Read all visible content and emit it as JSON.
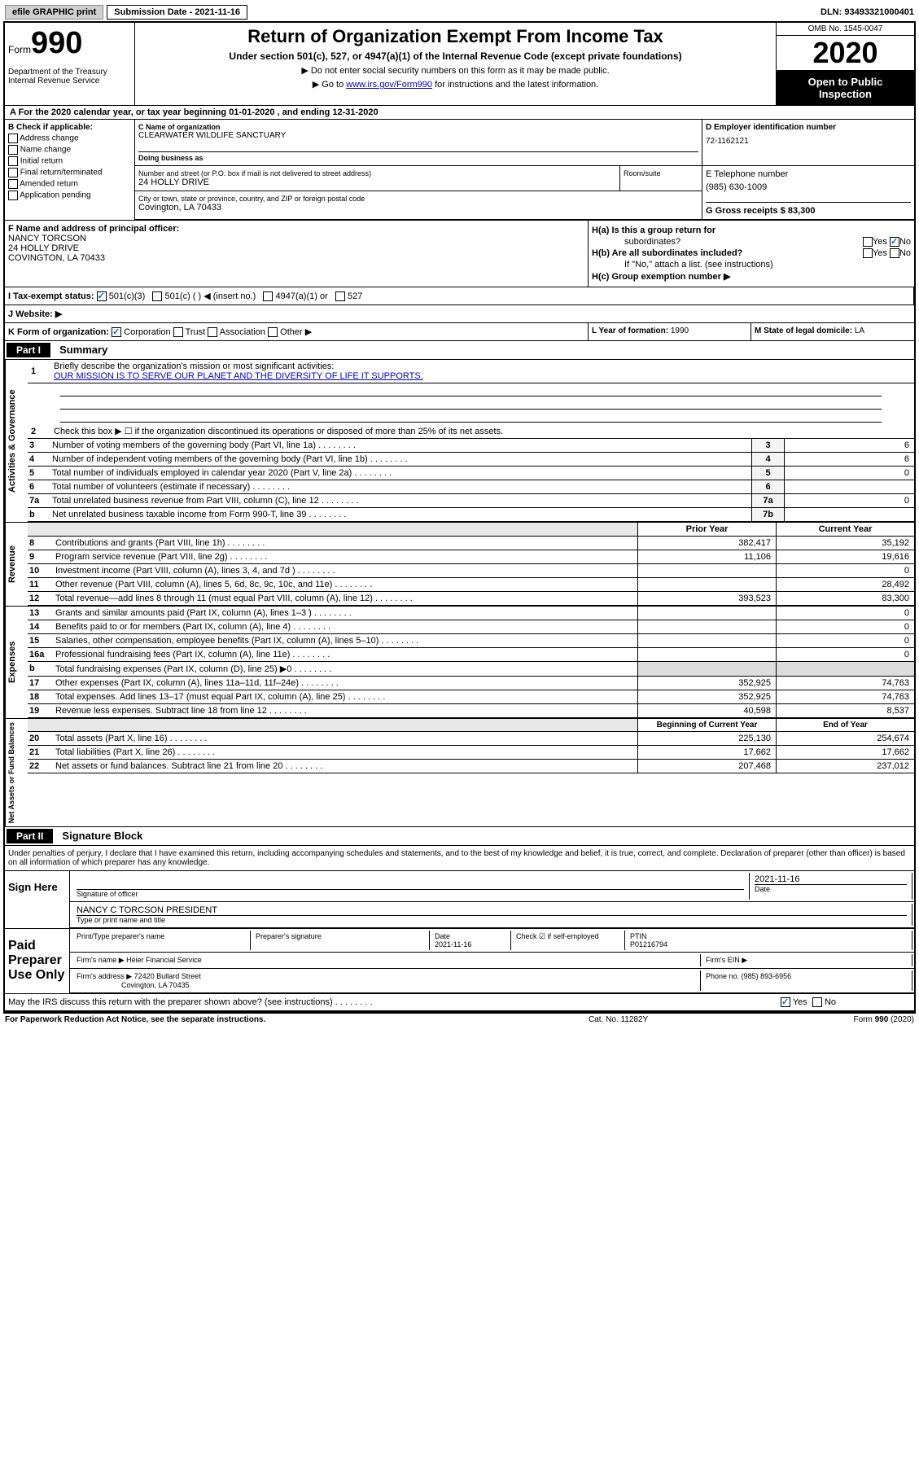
{
  "topbar": {
    "efile": "efile GRAPHIC print",
    "sub_date_label": "Submission Date - 2021-11-16",
    "dln": "DLN: 93493321000401"
  },
  "header": {
    "form_label": "Form",
    "form_num": "990",
    "dept": "Department of the Treasury\nInternal Revenue Service",
    "title": "Return of Organization Exempt From Income Tax",
    "subtitle": "Under section 501(c), 527, or 4947(a)(1) of the Internal Revenue Code (except private foundations)",
    "line1": "▶ Do not enter social security numbers on this form as it may be made public.",
    "line2_pre": "▶ Go to ",
    "line2_link": "www.irs.gov/Form990",
    "line2_post": " for instructions and the latest information.",
    "omb": "OMB No. 1545-0047",
    "year": "2020",
    "open": "Open to Public Inspection"
  },
  "row_a": "A For the 2020 calendar year, or tax year beginning 01-01-2020    , and ending 12-31-2020",
  "col_b": {
    "title": "B Check if applicable:",
    "items": [
      "Address change",
      "Name change",
      "Initial return",
      "Final return/terminated",
      "Amended return",
      "Application pending"
    ]
  },
  "entity": {
    "name_label": "C Name of organization",
    "name": "CLEARWATER WILDLIFE SANCTUARY",
    "dba": "Doing business as",
    "street_label": "Number and street (or P.O. box if mail is not delivered to street address)",
    "street": "24 HOLLY DRIVE",
    "room_label": "Room/suite",
    "city_label": "City or town, state or province, country, and ZIP or foreign postal code",
    "city": "Covington, LA  70433",
    "ein_label": "D Employer identification number",
    "ein": "72-1162121",
    "phone_label": "E Telephone number",
    "phone": "(985) 630-1009",
    "gross_label": "G Gross receipts $ 83,300"
  },
  "officer": {
    "label": "F  Name and address of principal officer:",
    "name": "NANCY TORCSON",
    "addr1": "24 HOLLY DRIVE",
    "addr2": "COVINGTON, LA  70433"
  },
  "h": {
    "a_label": "H(a)  Is this a group return for",
    "a_sub": "subordinates?",
    "b_label": "H(b)  Are all subordinates included?",
    "b_note": "If \"No,\" attach a list. (see instructions)",
    "c_label": "H(c)  Group exemption number ▶"
  },
  "status": {
    "label": "I    Tax-exempt status:",
    "opts": [
      "501(c)(3)",
      "501(c) (  ) ◀ (insert no.)",
      "4947(a)(1) or",
      "527"
    ]
  },
  "website_label": "J   Website: ▶",
  "klm": {
    "k": "K Form of organization:",
    "k_opts": [
      "Corporation",
      "Trust",
      "Association",
      "Other ▶"
    ],
    "l_label": "L Year of formation:",
    "l_val": "1990",
    "m_label": "M State of legal domicile:",
    "m_val": "LA"
  },
  "part1": {
    "label": "Part I",
    "title": "Summary",
    "side_gov": "Activities & Governance",
    "line1": "Briefly describe the organization's mission or most significant activities:",
    "mission": "OUR MISSION IS TO SERVE OUR PLANET AND THE DIVERSITY OF LIFE IT SUPPORTS.",
    "line2": "Check this box ▶ ☐  if the organization discontinued its operations or disposed of more than 25% of its net assets.",
    "lines_boxed": [
      {
        "n": "3",
        "t": "Number of voting members of the governing body (Part VI, line 1a)",
        "b": "3",
        "v": "6"
      },
      {
        "n": "4",
        "t": "Number of independent voting members of the governing body (Part VI, line 1b)",
        "b": "4",
        "v": "6"
      },
      {
        "n": "5",
        "t": "Total number of individuals employed in calendar year 2020 (Part V, line 2a)",
        "b": "5",
        "v": "0"
      },
      {
        "n": "6",
        "t": "Total number of volunteers (estimate if necessary)",
        "b": "6",
        "v": ""
      },
      {
        "n": "7a",
        "t": "Total unrelated business revenue from Part VIII, column (C), line 12",
        "b": "7a",
        "v": "0"
      },
      {
        "n": "b",
        "t": "Net unrelated business taxable income from Form 990-T, line 39",
        "b": "7b",
        "v": ""
      }
    ],
    "side_rev": "Revenue",
    "fin_hdr_prior": "Prior Year",
    "fin_hdr_curr": "Current Year",
    "rev_lines": [
      {
        "n": "8",
        "t": "Contributions and grants (Part VIII, line 1h)",
        "p": "382,417",
        "c": "35,192"
      },
      {
        "n": "9",
        "t": "Program service revenue (Part VIII, line 2g)",
        "p": "11,106",
        "c": "19,616"
      },
      {
        "n": "10",
        "t": "Investment income (Part VIII, column (A), lines 3, 4, and 7d )",
        "p": "",
        "c": "0"
      },
      {
        "n": "11",
        "t": "Other revenue (Part VIII, column (A), lines 5, 6d, 8c, 9c, 10c, and 11e)",
        "p": "",
        "c": "28,492"
      },
      {
        "n": "12",
        "t": "Total revenue—add lines 8 through 11 (must equal Part VIII, column (A), line 12)",
        "p": "393,523",
        "c": "83,300"
      }
    ],
    "side_exp": "Expenses",
    "exp_lines": [
      {
        "n": "13",
        "t": "Grants and similar amounts paid (Part IX, column (A), lines 1–3 )",
        "p": "",
        "c": "0"
      },
      {
        "n": "14",
        "t": "Benefits paid to or for members (Part IX, column (A), line 4)",
        "p": "",
        "c": "0"
      },
      {
        "n": "15",
        "t": "Salaries, other compensation, employee benefits (Part IX, column (A), lines 5–10)",
        "p": "",
        "c": "0"
      },
      {
        "n": "16a",
        "t": "Professional fundraising fees (Part IX, column (A), line 11e)",
        "p": "",
        "c": "0"
      },
      {
        "n": "b",
        "t": "Total fundraising expenses (Part IX, column (D), line 25) ▶0",
        "p": "grey",
        "c": "grey"
      },
      {
        "n": "17",
        "t": "Other expenses (Part IX, column (A), lines 11a–11d, 11f–24e)",
        "p": "352,925",
        "c": "74,763"
      },
      {
        "n": "18",
        "t": "Total expenses. Add lines 13–17 (must equal Part IX, column (A), line 25)",
        "p": "352,925",
        "c": "74,763"
      },
      {
        "n": "19",
        "t": "Revenue less expenses. Subtract line 18 from line 12",
        "p": "40,598",
        "c": "8,537"
      }
    ],
    "side_net": "Net Assets or Fund Balances",
    "net_hdr_beg": "Beginning of Current Year",
    "net_hdr_end": "End of Year",
    "net_lines": [
      {
        "n": "20",
        "t": "Total assets (Part X, line 16)",
        "p": "225,130",
        "c": "254,674"
      },
      {
        "n": "21",
        "t": "Total liabilities (Part X, line 26)",
        "p": "17,662",
        "c": "17,662"
      },
      {
        "n": "22",
        "t": "Net assets or fund balances. Subtract line 21 from line 20",
        "p": "207,468",
        "c": "237,012"
      }
    ]
  },
  "part2": {
    "label": "Part II",
    "title": "Signature Block",
    "perjury": "Under penalties of perjury, I declare that I have examined this return, including accompanying schedules and statements, and to the best of my knowledge and belief, it is true, correct, and complete. Declaration of preparer (other than officer) is based on all information of which preparer has any knowledge.",
    "sign_here": "Sign Here",
    "sig_officer": "Signature of officer",
    "sig_date": "2021-11-16",
    "date_label": "Date",
    "officer_name": "NANCY C TORCSON  PRESIDENT",
    "type_name": "Type or print name and title",
    "paid": "Paid Preparer Use Only",
    "prep_name_label": "Print/Type preparer's name",
    "prep_sig_label": "Preparer's signature",
    "prep_date": "2021-11-16",
    "check_self": "Check ☑ if self-employed",
    "ptin_label": "PTIN",
    "ptin": "P01216794",
    "firm_name_label": "Firm's name   ▶",
    "firm_name": "Heier Financial Service",
    "firm_ein_label": "Firm's EIN ▶",
    "firm_addr_label": "Firm's address ▶",
    "firm_addr1": "72420 Bullard Street",
    "firm_addr2": "Covington, LA  70435",
    "firm_phone_label": "Phone no.",
    "firm_phone": "(985) 893-6956",
    "discuss": "May the IRS discuss this return with the preparer shown above? (see instructions)"
  },
  "footer": {
    "left": "For Paperwork Reduction Act Notice, see the separate instructions.",
    "mid": "Cat. No. 11282Y",
    "right": "Form 990 (2020)"
  }
}
